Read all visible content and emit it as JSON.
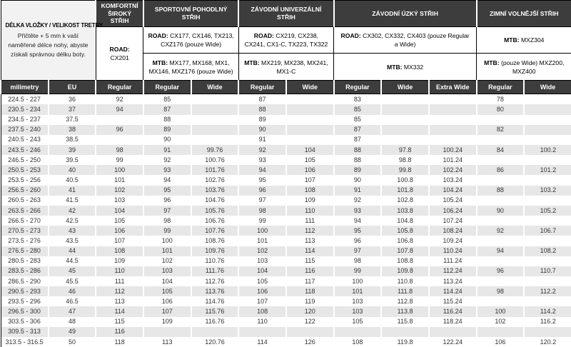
{
  "colors": {
    "header_bg": "#3d3d3d",
    "row_alt": "#e7e7e7",
    "info_bg": "#f2f2f2",
    "bottom_line": "#1a1a1a"
  },
  "info": {
    "title": "DÉLKA VLOŽKY / VELIKOST TRETRY",
    "description": "Přičtěte + 5 mm k vaší naměřené délce nohy, abyste získali správnou délku boty."
  },
  "categories": [
    {
      "title": "KOMFORTNÍ ŠIROKÝ STŘIH",
      "span": 1,
      "cells": [
        {
          "label": "ROAD",
          "text": "CX201"
        }
      ]
    },
    {
      "title": "SPORTOVNÍ POHODLNÝ STŘIH",
      "span": 2,
      "cells": [
        {
          "label": "ROAD",
          "text": "CX177, CX146, TX213, CXZ176 (pouze Wide)"
        },
        {
          "label": "MTB",
          "text": "MX177, MX168, MX1, MX146, MXZ176 (pouze Wide)"
        }
      ]
    },
    {
      "title": "ZÁVODNÍ UNIVERZÁLNÍ STŘIH",
      "span": 2,
      "cells": [
        {
          "label": "ROAD",
          "text": "CX219, CX238, CX241, CX1-C, TX223, TX322"
        },
        {
          "label": "MTB",
          "text": "MX219, MX238, MX241, MX1-C"
        }
      ]
    },
    {
      "title": "ZÁVODNÍ ÚZKÝ STŘIH",
      "span": 3,
      "cells": [
        {
          "label": "ROAD",
          "text": "CX302, CX332, CX403 (pouze Regular a Wide)"
        },
        {
          "label": "MTB",
          "text": "MX332"
        }
      ]
    },
    {
      "title": "ZIMNÍ VOLNĚJŠÍ STŘIH",
      "span": 2,
      "cells": [
        {
          "label": "MTB",
          "text": "MXZ304"
        },
        {
          "label": "MTB",
          "text": "(pouze Wide) MXZ200, MXZ400"
        }
      ]
    }
  ],
  "columns": [
    "milimetry",
    "EU",
    "Regular",
    "Regular",
    "Wide",
    "Regular",
    "Wide",
    "Regular",
    "Wide",
    "Extra Wide",
    "Regular",
    "Wide"
  ],
  "rows": [
    [
      "224.5 - 227",
      "36",
      "92",
      "85",
      "",
      "87",
      "",
      "83",
      "",
      "",
      "78",
      ""
    ],
    [
      "230.5 - 234",
      "37",
      "94",
      "87",
      "",
      "88",
      "",
      "85",
      "",
      "",
      "80",
      ""
    ],
    [
      "234.5 - 237",
      "37.5",
      "",
      "88",
      "",
      "89",
      "",
      "85",
      "",
      "",
      "",
      ""
    ],
    [
      "237.5 - 240",
      "38",
      "96",
      "89",
      "",
      "90",
      "",
      "87",
      "",
      "",
      "82",
      ""
    ],
    [
      "240.5 - 243",
      "38.5",
      "",
      "90",
      "",
      "91",
      "",
      "87",
      "",
      "",
      "",
      ""
    ],
    [
      "243.5 - 246",
      "39",
      "98",
      "91",
      "99.76",
      "92",
      "104",
      "88",
      "97.8",
      "100.24",
      "84",
      "100.2"
    ],
    [
      "246.5 - 250",
      "39.5",
      "99",
      "92",
      "100.76",
      "93",
      "105",
      "88",
      "98.8",
      "101.24",
      "",
      ""
    ],
    [
      "250.5 - 253",
      "40",
      "100",
      "93",
      "101.76",
      "94",
      "106",
      "89",
      "99.8",
      "102.24",
      "86",
      "101.2"
    ],
    [
      "253.5 - 256",
      "40.5",
      "101",
      "94",
      "102.76",
      "95",
      "107",
      "90",
      "100.8",
      "103.24",
      "",
      ""
    ],
    [
      "256.5 - 260",
      "41",
      "102",
      "95",
      "103.76",
      "96",
      "108",
      "91",
      "101.8",
      "104.24",
      "88",
      "103.2"
    ],
    [
      "260.5 - 263",
      "41.5",
      "103",
      "96",
      "104.76",
      "97",
      "109",
      "92",
      "102.8",
      "105.24",
      "",
      ""
    ],
    [
      "263.5 - 266",
      "42",
      "104",
      "97",
      "105.76",
      "98",
      "110",
      "93",
      "103.8",
      "106.24",
      "90",
      "105.2"
    ],
    [
      "266.5 - 270",
      "42.5",
      "105",
      "98",
      "106.76",
      "99",
      "111",
      "94",
      "104.8",
      "107.24",
      "",
      ""
    ],
    [
      "270.5 - 273",
      "43",
      "106",
      "99",
      "107.76",
      "100",
      "112",
      "95",
      "105.8",
      "108.24",
      "92",
      "106.7"
    ],
    [
      "273.5 - 276",
      "43.5",
      "107",
      "100",
      "108.76",
      "101",
      "113",
      "96",
      "106.8",
      "109.24",
      "",
      ""
    ],
    [
      "276.5 - 280",
      "44",
      "108",
      "101",
      "109.76",
      "102",
      "114",
      "97",
      "107.8",
      "110.24",
      "94",
      "108.2"
    ],
    [
      "280.5 - 283",
      "44.5",
      "109",
      "102",
      "110.76",
      "103",
      "115",
      "98",
      "108.8",
      "111.24",
      "",
      ""
    ],
    [
      "283.5 - 286",
      "45",
      "110",
      "103",
      "111.76",
      "104",
      "116",
      "99",
      "109.8",
      "112.24",
      "96",
      "110.7"
    ],
    [
      "286.5 - 290",
      "45.5",
      "111",
      "104",
      "112.76",
      "105",
      "117",
      "100",
      "110.8",
      "113.24",
      "",
      ""
    ],
    [
      "290.5 - 293",
      "46",
      "112",
      "105",
      "113.76",
      "106",
      "118",
      "101",
      "111.8",
      "114.24",
      "98",
      "112.2"
    ],
    [
      "293.5 - 296",
      "46.5",
      "113",
      "106",
      "114.76",
      "107",
      "119",
      "103",
      "112.8",
      "115.24",
      "",
      ""
    ],
    [
      "296.5 - 300",
      "47",
      "114",
      "107",
      "115.76",
      "108",
      "120",
      "103",
      "113.8",
      "116.24",
      "100",
      "114.2"
    ],
    [
      "303.5 - 306",
      "48",
      "115",
      "109",
      "116.76",
      "110",
      "122",
      "105",
      "115.8",
      "118.24",
      "102",
      "116.2"
    ],
    [
      "309.5 - 313",
      "49",
      "116",
      "",
      "",
      "",
      "",
      "",
      "",
      "",
      "",
      ""
    ],
    [
      "313.5 - 316.5",
      "50",
      "118",
      "113",
      "120.76",
      "114",
      "126",
      "108",
      "119.8",
      "122.24",
      "106",
      "120.2"
    ]
  ]
}
